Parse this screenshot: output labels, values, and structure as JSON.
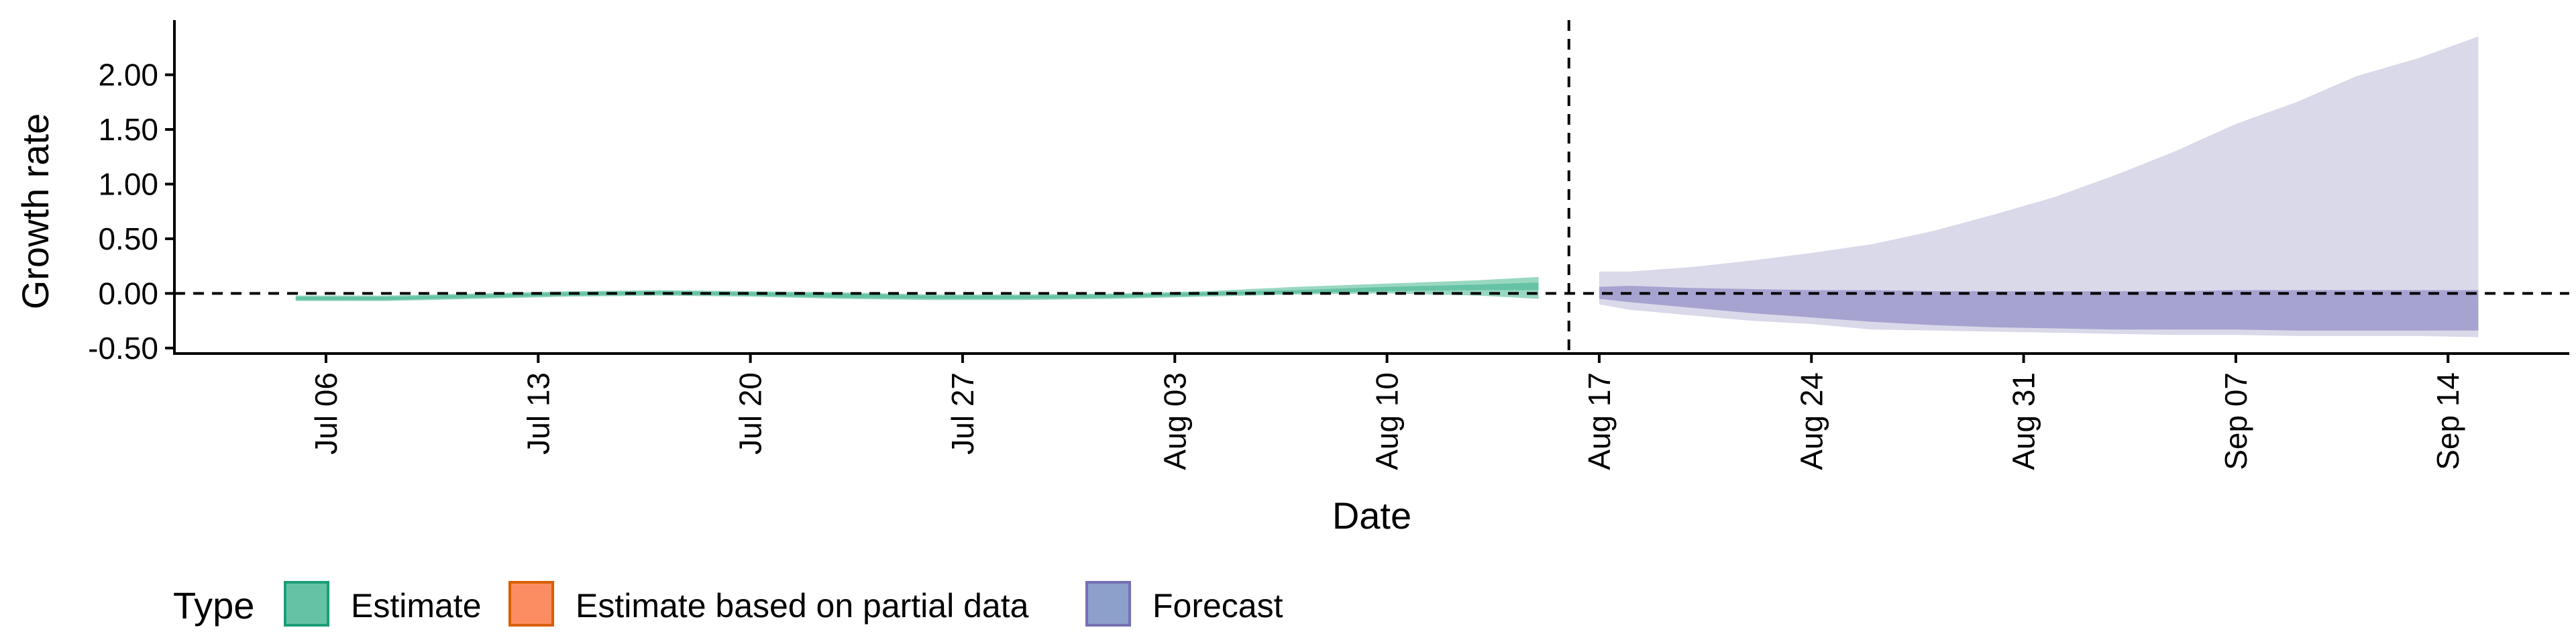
{
  "chart_data": {
    "type": "area",
    "xlabel": "Date",
    "ylabel": "Growth rate",
    "ylim": [
      -0.55,
      2.5
    ],
    "xlim": [
      "2020-07-01",
      "2020-09-18"
    ],
    "y_ticks": [
      -0.5,
      0.0,
      0.5,
      1.0,
      1.5,
      2.0
    ],
    "y_tick_labels": [
      "-0.50",
      "0.00",
      "0.50",
      "1.00",
      "1.50",
      "2.00"
    ],
    "x_ticks": [
      "2020-07-06",
      "2020-07-13",
      "2020-07-20",
      "2020-07-27",
      "2020-08-03",
      "2020-08-10",
      "2020-08-17",
      "2020-08-24",
      "2020-08-31",
      "2020-09-07",
      "2020-09-14"
    ],
    "x_tick_labels": [
      "Jul 06",
      "Jul 13",
      "Jul 20",
      "Jul 27",
      "Aug 03",
      "Aug 10",
      "Aug 17",
      "Aug 24",
      "Aug 31",
      "Sep 07",
      "Sep 14"
    ],
    "reference_lines": {
      "horizontal_y": 0.0,
      "vertical_date": "2020-08-16"
    },
    "legend": {
      "title": "Type",
      "placement": "bottom-left",
      "items": [
        {
          "label": "Estimate",
          "fill": "#66c2a5",
          "border": "#1b9e77"
        },
        {
          "label": "Estimate based on partial data",
          "fill": "#fc8d62",
          "border": "#d95f02"
        },
        {
          "label": "Forecast",
          "fill": "#8da0cb",
          "border": "#7570b3"
        }
      ]
    },
    "colors": {
      "estimate_outer": "#99d8c0",
      "estimate_inner": "#66c2a5",
      "forecast_outer": "#d9d9ea",
      "forecast_inner": "#a6a3d0"
    },
    "series": [
      {
        "name": "Estimate",
        "x": [
          "2020-07-05",
          "2020-07-08",
          "2020-07-11",
          "2020-07-14",
          "2020-07-17",
          "2020-07-20",
          "2020-07-23",
          "2020-07-26",
          "2020-07-29",
          "2020-08-01",
          "2020-08-04",
          "2020-08-07",
          "2020-08-10",
          "2020-08-13",
          "2020-08-15"
        ],
        "outer_upper": [
          -0.02,
          -0.02,
          0.0,
          0.02,
          0.03,
          0.02,
          0.01,
          -0.01,
          -0.01,
          0.0,
          0.02,
          0.06,
          0.09,
          0.12,
          0.15
        ],
        "inner_upper": [
          -0.03,
          -0.03,
          -0.01,
          0.01,
          0.02,
          0.01,
          0.0,
          -0.02,
          -0.02,
          -0.01,
          0.01,
          0.03,
          0.06,
          0.08,
          0.1
        ],
        "inner_lower": [
          -0.06,
          -0.06,
          -0.04,
          -0.02,
          -0.01,
          -0.02,
          -0.04,
          -0.05,
          -0.05,
          -0.04,
          -0.02,
          0.0,
          0.02,
          0.03,
          0.03
        ],
        "outer_lower": [
          -0.07,
          -0.07,
          -0.05,
          -0.03,
          -0.02,
          -0.03,
          -0.05,
          -0.06,
          -0.06,
          -0.05,
          -0.03,
          -0.01,
          0.0,
          -0.02,
          -0.05
        ]
      },
      {
        "name": "Forecast",
        "x": [
          "2020-08-17",
          "2020-08-18",
          "2020-08-20",
          "2020-08-22",
          "2020-08-24",
          "2020-08-26",
          "2020-08-28",
          "2020-08-30",
          "2020-09-01",
          "2020-09-03",
          "2020-09-05",
          "2020-09-07",
          "2020-09-09",
          "2020-09-11",
          "2020-09-13",
          "2020-09-15"
        ],
        "outer_upper": [
          0.2,
          0.2,
          0.24,
          0.3,
          0.37,
          0.45,
          0.57,
          0.72,
          0.88,
          1.08,
          1.3,
          1.55,
          1.75,
          1.99,
          2.15,
          2.35
        ],
        "inner_upper": [
          0.06,
          0.07,
          0.05,
          0.04,
          0.03,
          0.03,
          0.02,
          0.02,
          0.02,
          0.02,
          0.02,
          0.03,
          0.03,
          0.03,
          0.03,
          0.03
        ],
        "inner_lower": [
          -0.05,
          -0.08,
          -0.13,
          -0.18,
          -0.22,
          -0.26,
          -0.29,
          -0.31,
          -0.32,
          -0.33,
          -0.33,
          -0.33,
          -0.34,
          -0.34,
          -0.34,
          -0.34
        ],
        "outer_lower": [
          -0.1,
          -0.15,
          -0.2,
          -0.25,
          -0.28,
          -0.33,
          -0.34,
          -0.35,
          -0.36,
          -0.37,
          -0.38,
          -0.38,
          -0.39,
          -0.39,
          -0.39,
          -0.4
        ]
      }
    ]
  }
}
